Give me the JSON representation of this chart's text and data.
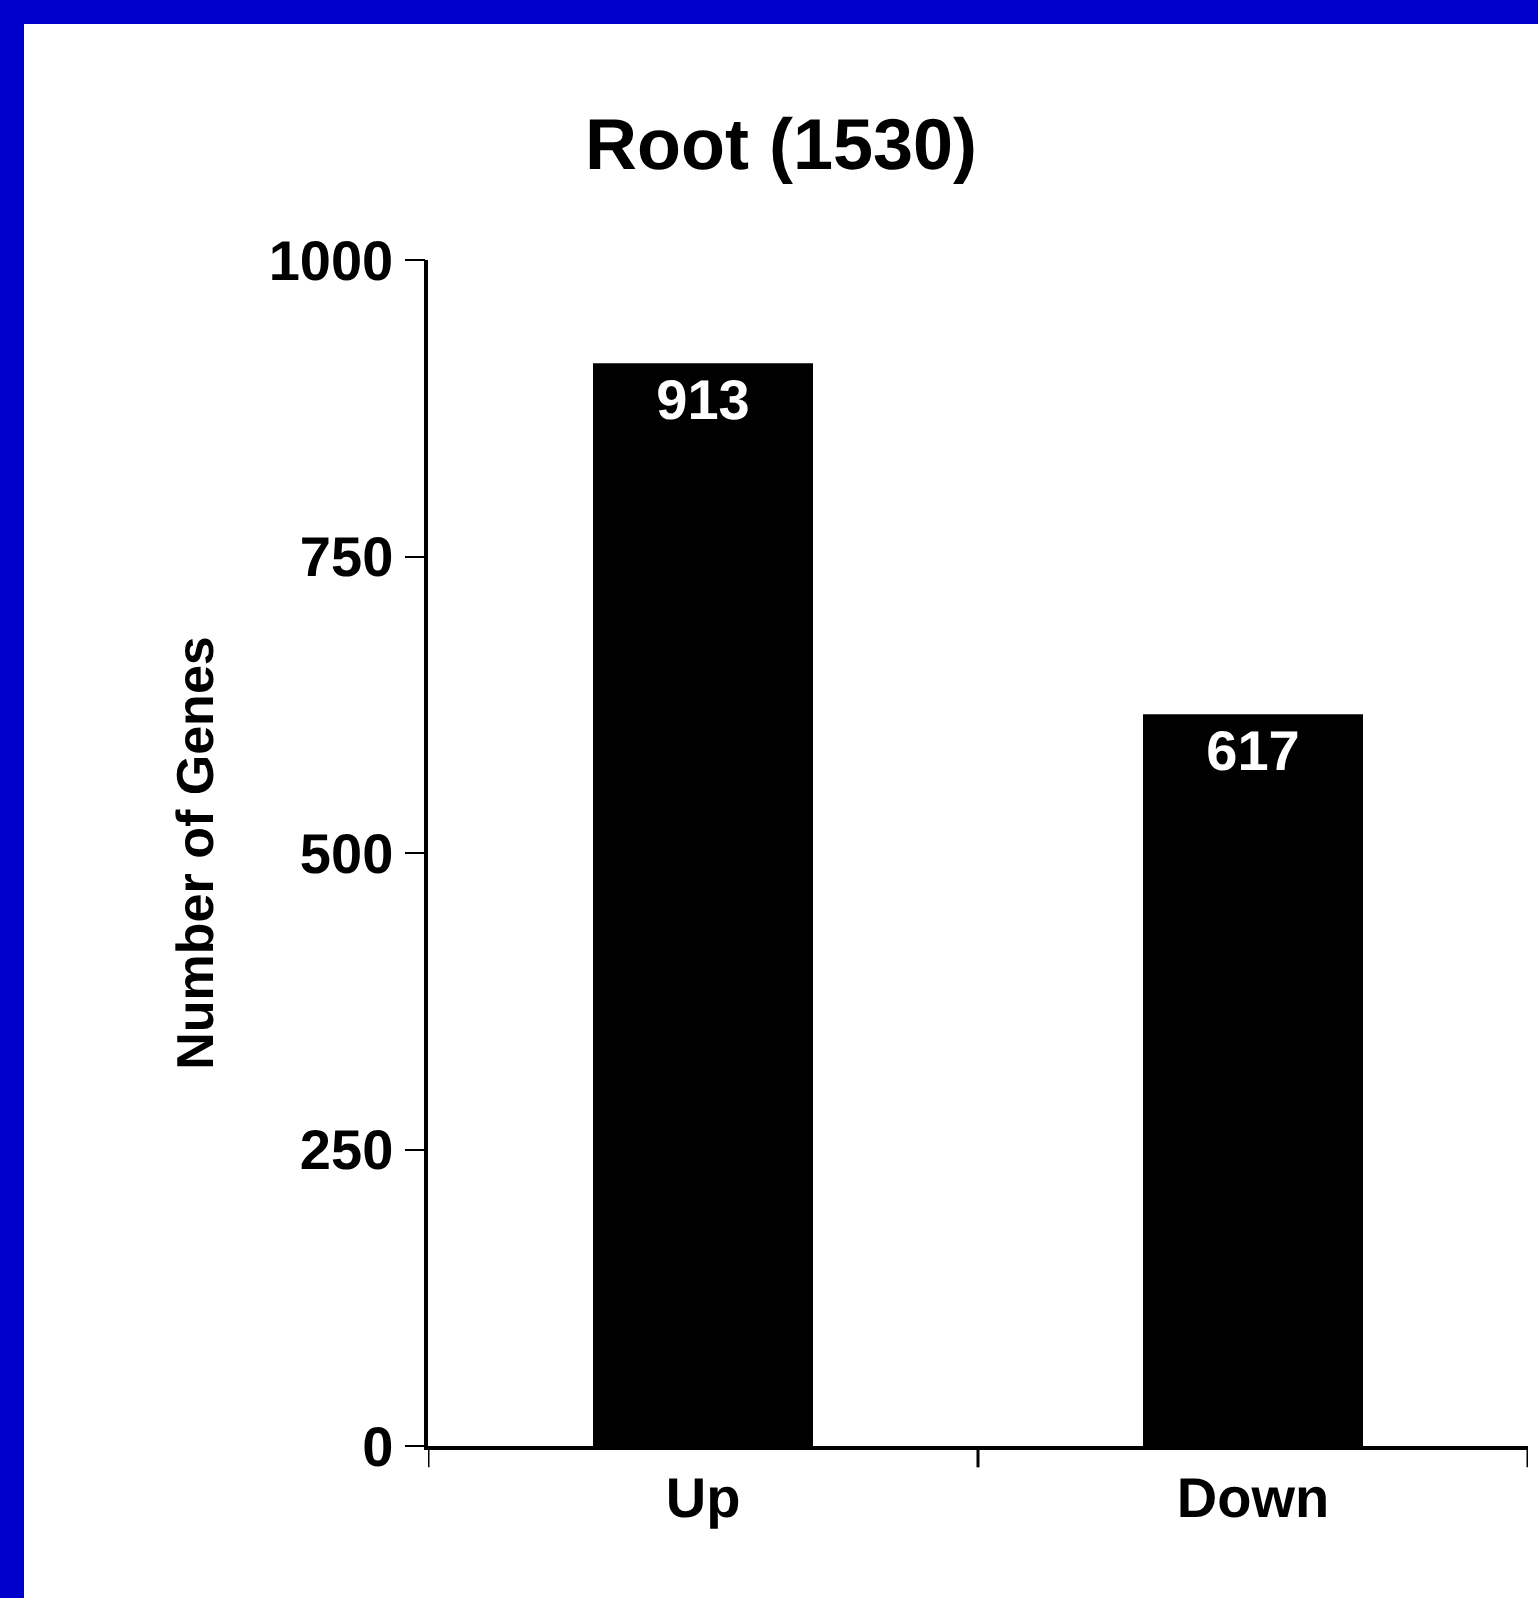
{
  "chart_data": {
    "type": "bar",
    "title": "Root (1530)",
    "ylabel": "Number of Genes",
    "categories": [
      "Up",
      "Down"
    ],
    "values": [
      913,
      617
    ],
    "color": "#000000",
    "ylim": [
      0,
      1000
    ],
    "yticks": [
      0,
      250,
      500,
      750,
      1000
    ],
    "grid": false,
    "legend": false,
    "data_labels": true
  }
}
